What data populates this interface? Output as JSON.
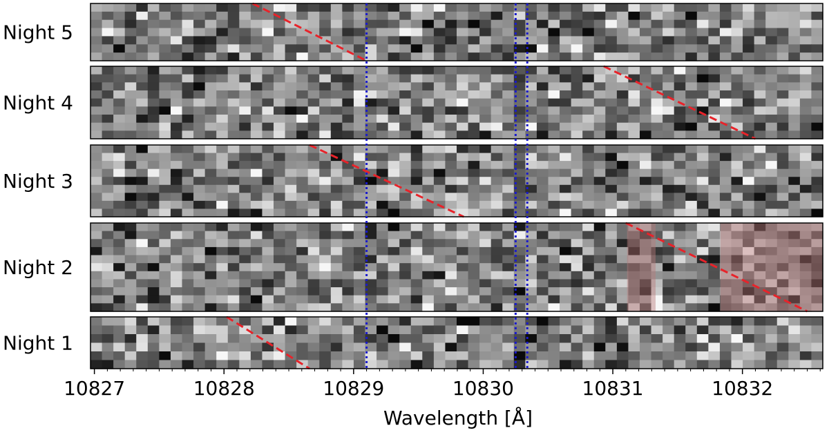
{
  "chart_data": {
    "type": "heatmap",
    "xlabel": "Wavelength [Å]",
    "xlim": [
      10826.97,
      10832.62
    ],
    "x_ticks": [
      10827,
      10828,
      10829,
      10830,
      10831,
      10832
    ],
    "x_tick_labels": [
      "10827",
      "10828",
      "10829",
      "10830",
      "10831",
      "10832"
    ],
    "colormap": "gray",
    "grid": false,
    "reference_lines": {
      "style": "dotted",
      "color": "#1a1acc",
      "x": [
        10829.1,
        10830.25,
        10830.34
      ]
    },
    "trail_line_style": {
      "style": "dashed",
      "color": "#e8232a"
    },
    "masked_region_color": "#b97a7a",
    "panels": [
      {
        "label": "Night 5",
        "seed": 5,
        "trail": {
          "x_start": 10828.22,
          "x_end": 10829.1
        },
        "masked_regions": []
      },
      {
        "label": "Night 4",
        "seed": 4,
        "trail": {
          "x_start": 10830.93,
          "x_end": 10832.1
        },
        "masked_regions": []
      },
      {
        "label": "Night 3",
        "seed": 3,
        "trail": {
          "x_start": 10828.66,
          "x_end": 10829.85
        },
        "masked_regions": []
      },
      {
        "label": "Night 2",
        "seed": 2,
        "trail": {
          "x_start": 10831.1,
          "x_end": 10832.5
        },
        "masked_regions": [
          [
            10831.11,
            10831.33
          ],
          [
            10831.83,
            10832.62
          ]
        ]
      },
      {
        "label": "Night 1",
        "seed": 1,
        "trail": {
          "x_start": 10828.02,
          "x_end": 10828.66
        },
        "masked_regions": []
      }
    ]
  }
}
